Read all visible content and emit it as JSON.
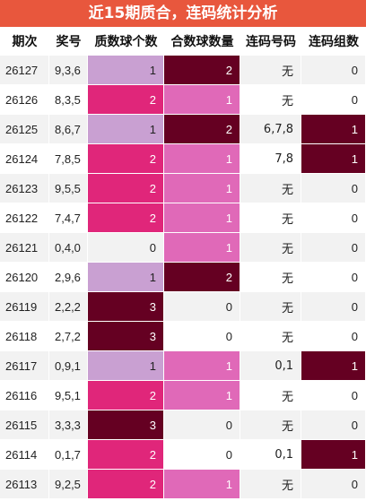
{
  "title": "近15期质合，连码统计分析",
  "table": {
    "header": [
      "期次",
      "奖号",
      "质数球个数",
      "合数球数量",
      "连码号码",
      "连码组数"
    ],
    "rows": [
      [
        26127,
        "9,3,6",
        1,
        2,
        "无",
        0
      ],
      [
        26126,
        "8,3,5",
        2,
        1,
        "无",
        0
      ],
      [
        26125,
        "8,6,7",
        1,
        2,
        "6,7,8",
        1
      ],
      [
        26124,
        "7,8,5",
        2,
        1,
        "7,8",
        1
      ],
      [
        26123,
        "9,5,5",
        2,
        1,
        "无",
        0
      ],
      [
        26122,
        "7,4,7",
        2,
        1,
        "无",
        0
      ],
      [
        26121,
        "0,4,0",
        0,
        1,
        "无",
        0
      ],
      [
        26120,
        "2,9,6",
        1,
        2,
        "无",
        0
      ],
      [
        26119,
        "2,2,2",
        3,
        0,
        "无",
        0
      ],
      [
        26118,
        "2,7,2",
        3,
        0,
        "无",
        0
      ],
      [
        26117,
        "0,9,1",
        1,
        1,
        "0,1",
        1
      ],
      [
        26116,
        "9,5,1",
        2,
        1,
        "无",
        0
      ],
      [
        26115,
        "3,3,3",
        3,
        0,
        "无",
        0
      ],
      [
        26114,
        "0,1,7",
        2,
        0,
        "0,1",
        1
      ],
      [
        26113,
        "9,2,5",
        2,
        1,
        "无",
        0
      ]
    ]
  }
}
